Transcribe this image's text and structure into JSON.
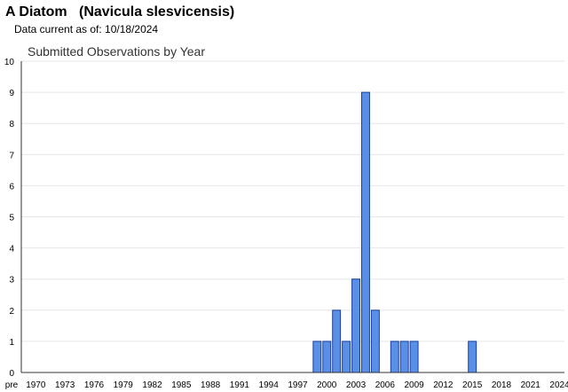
{
  "header": {
    "common_name": "A Diatom",
    "scientific_name": "(Navicula slesvicensis)",
    "data_current": "Data current as of: 10/18/2024"
  },
  "chart_data": {
    "type": "bar",
    "title": "Submitted Observations by Year",
    "xlabel": "",
    "ylabel": "",
    "ylim": [
      0,
      10
    ],
    "yticks": [
      0,
      1,
      2,
      3,
      4,
      5,
      6,
      7,
      8,
      9,
      10
    ],
    "x_tick_labels": [
      "pre",
      "1970",
      "1973",
      "1976",
      "1979",
      "1982",
      "1985",
      "1988",
      "1991",
      "1994",
      "1997",
      "2000",
      "2003",
      "2006",
      "2009",
      "2012",
      "2015",
      "2018",
      "2021",
      "2024"
    ],
    "categories": [
      "pre",
      "1970",
      "1971",
      "1972",
      "1973",
      "1974",
      "1975",
      "1976",
      "1977",
      "1978",
      "1979",
      "1980",
      "1981",
      "1982",
      "1983",
      "1984",
      "1985",
      "1986",
      "1987",
      "1988",
      "1989",
      "1990",
      "1991",
      "1992",
      "1993",
      "1994",
      "1995",
      "1996",
      "1997",
      "1998",
      "1999",
      "2000",
      "2001",
      "2002",
      "2003",
      "2004",
      "2005",
      "2006",
      "2007",
      "2008",
      "2009",
      "2010",
      "2011",
      "2012",
      "2013",
      "2014",
      "2015",
      "2016",
      "2017",
      "2018",
      "2019",
      "2020",
      "2021",
      "2022",
      "2023",
      "2024"
    ],
    "values": [
      0,
      0,
      0,
      0,
      0,
      0,
      0,
      0,
      0,
      0,
      0,
      0,
      0,
      0,
      0,
      0,
      0,
      0,
      0,
      0,
      0,
      0,
      0,
      0,
      0,
      0,
      0,
      0,
      0,
      0,
      1,
      1,
      2,
      1,
      3,
      9,
      2,
      0,
      1,
      1,
      1,
      0,
      0,
      0,
      0,
      0,
      1,
      0,
      0,
      0,
      0,
      0,
      0,
      0,
      0,
      0
    ],
    "grid": true,
    "colors": {
      "bar_fill": "#5a8fe8",
      "bar_stroke": "#1a3f99",
      "grid": "#e6e6e6",
      "axis": "#333333"
    }
  }
}
